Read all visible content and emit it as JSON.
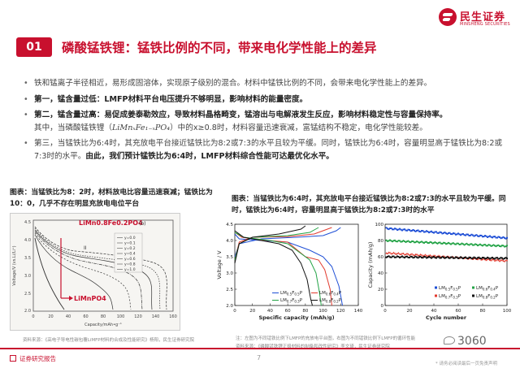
{
  "header": {
    "logo_cn": "民生证券",
    "logo_en": "MINSHENG SECURITIES",
    "section_number": "01",
    "title": "磷酸锰铁锂：锰铁比例的不同，带来电化学性能上的差异"
  },
  "bullets": [
    {
      "text": "铁和锰离子半径相近，易形成固溶体，实现原子级别的混合。材料中锰铁比例的不同，会带来电化学性能上的差异。"
    },
    {
      "bold": "第一，锰含量过低：LMFP材料平台电压提升不够明显，影响材料的能量密度。"
    },
    {
      "bold": "第二，锰含量过高：易促成姜泰勒效应，导致材料晶格畸变，锰溶出与电解液发生反应，影响材料稳定性与容量保持率。",
      "line2_pre": "其中，当磷酸锰铁锂（",
      "formula": "LiMnₓFe₁₋ₓPO₄",
      "line2_post": "）中的x≥0.8时，材料容量迅速衰减，富锰结构不稳定，电化学性能较差。"
    },
    {
      "pre": "第三，当锰铁比为6:4时，其充放电平台接近锰铁比为8:2或7:3的水平且较为平缓。同时，锰铁比为6:4时，容量明显高于锰铁比为8:2或7:3时的水平。",
      "bold": "由此，我们预计锰铁比为6:4时，LMFP材料综合性能可达最优化水平。"
    }
  ],
  "figure_left": {
    "caption": "图表：当锰铁比为8：2时，材料放电比容量迅速衰减；锰铁比为10：0，几乎不存在明显充放电电位平台",
    "label_top": "LiMn0.8Fe0.2PO4",
    "label_bottom": "LiMnPO4",
    "panel_label": "(b)",
    "roman_label": "II",
    "ylabel": "Voltage/V (vs.Li/Li⁺)",
    "xlabel": "Capacity/mAh•g⁻¹",
    "yticks": [
      "4.5",
      "4.0",
      "3.5",
      "3.0",
      "2.5",
      "2.0"
    ],
    "xticks": [
      "0",
      "20",
      "40",
      "60",
      "80",
      "100",
      "120",
      "140",
      "160"
    ],
    "legend": [
      "y=0.0",
      "y=0.1",
      "y=0.2",
      "y=0.4",
      "y=0.6",
      "y=0.8",
      "y=1.0"
    ],
    "source": "资料来源：《高电子导电性碳包覆LiMFP材料的合成及性能研究》杨阳，民生证券研究院"
  },
  "figure_right": {
    "caption": "图表：当锰铁比为6:4时，其充放电平台接近锰铁比为8:2或7:3的水平且较为平缓。同时，锰铁比为6:4时，容量明显高于锰铁比为8:2或7:3时的水平",
    "source_line1": "注：左图为不同锰铁比例下LMFP的充放电平台图，右图为不同锰铁比例下LMFP的循环性能",
    "source_line2": "资料来源：《磷酸锰铁锂正极材料的制备和改性研究》李文琦，民生证券研究院"
  },
  "chart_data": [
    {
      "type": "line",
      "title": "",
      "xlabel": "Specific capacity (mAh/g)",
      "ylabel": "Voltage / V",
      "xlim": [
        0,
        140
      ],
      "ylim": [
        2.0,
        4.5
      ],
      "xticks": [
        0,
        20,
        40,
        60,
        80,
        100,
        120,
        140
      ],
      "yticks": [
        2.0,
        2.5,
        3.0,
        3.5,
        4.0,
        4.5
      ],
      "series": [
        {
          "name": "LM0.5F0.5P",
          "color": "#1f4fd6",
          "charge": [
            [
              0,
              3.5
            ],
            [
              5,
              3.9
            ],
            [
              30,
              4.05
            ],
            [
              70,
              4.1
            ],
            [
              100,
              4.15
            ],
            [
              115,
              4.3
            ],
            [
              120,
              4.4
            ]
          ],
          "discharge": [
            [
              0,
              4.2
            ],
            [
              5,
              4.05
            ],
            [
              30,
              4.0
            ],
            [
              60,
              3.95
            ],
            [
              85,
              3.7
            ],
            [
              100,
              3.5
            ],
            [
              110,
              3.2
            ],
            [
              118,
              2.6
            ],
            [
              122,
              2.0
            ]
          ]
        },
        {
          "name": "LM0.6F0.4P",
          "color": "#e23a2e",
          "charge": [
            [
              0,
              3.4
            ],
            [
              5,
              3.95
            ],
            [
              20,
              4.1
            ],
            [
              60,
              4.12
            ],
            [
              90,
              4.2
            ],
            [
              105,
              4.35
            ],
            [
              110,
              4.4
            ]
          ],
          "discharge": [
            [
              0,
              4.25
            ],
            [
              8,
              4.1
            ],
            [
              30,
              4.02
            ],
            [
              60,
              3.95
            ],
            [
              80,
              3.5
            ],
            [
              95,
              3.4
            ],
            [
              102,
              3.1
            ],
            [
              108,
              2.5
            ],
            [
              110,
              2.0
            ]
          ]
        },
        {
          "name": "LM0.7F0.3P",
          "color": "#23a346",
          "charge": [
            [
              0,
              3.4
            ],
            [
              5,
              3.9
            ],
            [
              20,
              4.1
            ],
            [
              60,
              4.15
            ],
            [
              85,
              4.25
            ],
            [
              95,
              4.4
            ]
          ],
          "discharge": [
            [
              0,
              4.25
            ],
            [
              10,
              4.1
            ],
            [
              40,
              4.0
            ],
            [
              60,
              3.9
            ],
            [
              75,
              3.6
            ],
            [
              85,
              3.4
            ],
            [
              92,
              3.0
            ],
            [
              96,
              2.4
            ],
            [
              98,
              2.0
            ]
          ]
        },
        {
          "name": "LM0.8F0.2P",
          "color": "#111111",
          "charge": [
            [
              0,
              3.3
            ],
            [
              5,
              3.9
            ],
            [
              20,
              4.1
            ],
            [
              50,
              4.2
            ],
            [
              75,
              4.35
            ],
            [
              80,
              4.45
            ]
          ],
          "discharge": [
            [
              0,
              4.3
            ],
            [
              10,
              4.1
            ],
            [
              30,
              4.0
            ],
            [
              50,
              3.9
            ],
            [
              65,
              3.7
            ],
            [
              75,
              3.3
            ],
            [
              82,
              2.8
            ],
            [
              86,
              2.2
            ],
            [
              88,
              2.0
            ]
          ]
        }
      ]
    },
    {
      "type": "scatter",
      "title": "",
      "xlabel": "Cycle number",
      "ylabel": "Capacity (mAh/g)",
      "xlim": [
        0,
        100
      ],
      "ylim": [
        0,
        100
      ],
      "xticks": [
        0,
        20,
        40,
        60,
        80,
        100
      ],
      "yticks": [
        0,
        20,
        40,
        60,
        80,
        100
      ],
      "series": [
        {
          "name": "LM0.5F0.5P",
          "color": "#1f4fd6",
          "start": 95,
          "end": 83
        },
        {
          "name": "LM0.6F0.4P",
          "color": "#23a346",
          "start": 80,
          "end": 73
        },
        {
          "name": "LM0.7F0.3P",
          "color": "#e23a2e",
          "start": 65,
          "end": 55
        },
        {
          "name": "LM0.8F0.2P",
          "color": "#111111",
          "start": 60,
          "end": 58
        }
      ]
    }
  ],
  "footer": {
    "left": "证券研究报告",
    "page": "7",
    "right": "* 请务必阅读最后一页免责声明",
    "watermark": "3060"
  }
}
